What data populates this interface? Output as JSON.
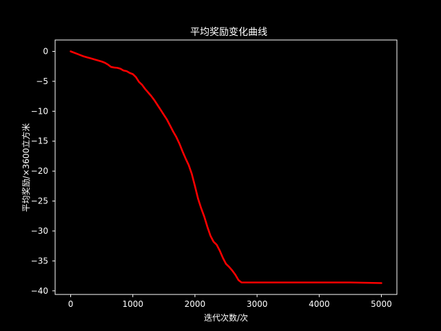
{
  "chart_data": {
    "type": "line",
    "title": "平均奖励变化曲线",
    "xlabel": "迭代次数/次",
    "ylabel": "平均奖励/×3600立方米",
    "xlim": [
      -250,
      5250
    ],
    "ylim": [
      -40.6,
      1.9
    ],
    "x_ticks": [
      0,
      1000,
      2000,
      3000,
      4000,
      5000
    ],
    "y_ticks": [
      0,
      -5,
      -10,
      -15,
      -20,
      -25,
      -30,
      -35,
      -40
    ],
    "x_tick_labels": [
      "0",
      "1000",
      "2000",
      "3000",
      "4000",
      "5000"
    ],
    "y_tick_labels": [
      "0",
      "−5",
      "−10",
      "−15",
      "−20",
      "−25",
      "−30",
      "−35",
      "−40"
    ],
    "grid": false,
    "colors": {
      "background": "#000000",
      "axes": "#ffffff",
      "text": "#ffffff",
      "line": "#ff0000"
    },
    "series": [
      {
        "x": [
          0,
          100,
          200,
          300,
          400,
          500,
          550,
          600,
          650,
          700,
          750,
          800,
          850,
          900,
          950,
          1000,
          1050,
          1100,
          1150,
          1200,
          1250,
          1300,
          1350,
          1400,
          1450,
          1500,
          1550,
          1600,
          1650,
          1700,
          1750,
          1800,
          1850,
          1900,
          1950,
          2000,
          2050,
          2100,
          2150,
          2200,
          2250,
          2300,
          2350,
          2400,
          2450,
          2500,
          2550,
          2600,
          2650,
          2700,
          2750,
          2800,
          3000,
          3500,
          4000,
          4500,
          5000
        ],
        "y": [
          0,
          -0.4,
          -0.8,
          -1.1,
          -1.4,
          -1.7,
          -1.9,
          -2.2,
          -2.6,
          -2.7,
          -2.75,
          -2.9,
          -3.2,
          -3.3,
          -3.6,
          -3.8,
          -4.3,
          -5.1,
          -5.6,
          -6.3,
          -6.9,
          -7.5,
          -8.2,
          -9.0,
          -9.8,
          -10.6,
          -11.4,
          -12.4,
          -13.4,
          -14.3,
          -15.4,
          -16.7,
          -17.9,
          -19.0,
          -20.5,
          -22.5,
          -24.6,
          -26.2,
          -27.6,
          -29.3,
          -30.8,
          -31.8,
          -32.3,
          -33.3,
          -34.5,
          -35.5,
          -36.0,
          -36.6,
          -37.3,
          -38.2,
          -38.6,
          -38.6,
          -38.6,
          -38.6,
          -38.6,
          -38.6,
          -38.7
        ]
      }
    ]
  }
}
